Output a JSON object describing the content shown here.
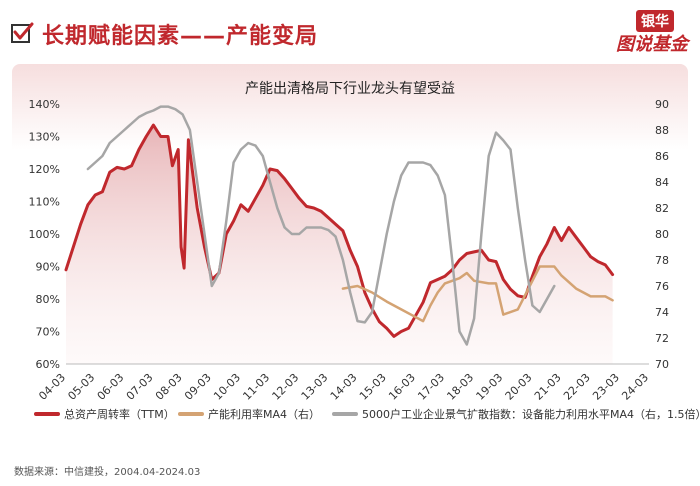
{
  "header": {
    "title": "长期赋能因素——产能变局",
    "brand_top": "银华",
    "brand_main": "图说基金"
  },
  "source": "数据来源：中信建投，2004.04-2024.03",
  "colors": {
    "accent": "#c0282d",
    "series_turnover": "#c0282d",
    "series_capacity": "#d4a373",
    "series_survey": "#a6a6a6"
  },
  "chart_data": {
    "type": "line",
    "title": "产能出清格局下行业龙头有望受益",
    "x_labels": [
      "04-03",
      "05-03",
      "06-03",
      "07-03",
      "08-03",
      "09-03",
      "10-03",
      "11-03",
      "12-03",
      "13-03",
      "14-03",
      "15-03",
      "16-03",
      "17-03",
      "18-03",
      "19-03",
      "20-03",
      "21-03",
      "22-03",
      "23-03",
      "24-03"
    ],
    "x_range": [
      0,
      20
    ],
    "y_left": {
      "min": 60,
      "max": 140,
      "step": 10,
      "ticks": [
        "60%",
        "70%",
        "80%",
        "90%",
        "100%",
        "110%",
        "120%",
        "130%",
        "140%"
      ]
    },
    "y_right": {
      "min": 70,
      "max": 90,
      "step": 2,
      "ticks": [
        "70",
        "72",
        "74",
        "76",
        "78",
        "80",
        "82",
        "84",
        "86",
        "88",
        "90"
      ]
    },
    "grid": false,
    "legend_position": "bottom",
    "series": [
      {
        "name": "总资产周转率（TTM）",
        "axis": "left",
        "style": "line-area",
        "points": [
          [
            0.0,
            89
          ],
          [
            0.5,
            103
          ],
          [
            0.75,
            109
          ],
          [
            1.0,
            112
          ],
          [
            1.25,
            113
          ],
          [
            1.5,
            119
          ],
          [
            1.75,
            120.5
          ],
          [
            2.0,
            120
          ],
          [
            2.25,
            121
          ],
          [
            2.5,
            126
          ],
          [
            2.75,
            130
          ],
          [
            3.0,
            133.5
          ],
          [
            3.25,
            130
          ],
          [
            3.5,
            130
          ],
          [
            3.65,
            121
          ],
          [
            3.85,
            126
          ],
          [
            3.95,
            96
          ],
          [
            4.05,
            89.5
          ],
          [
            4.2,
            129
          ],
          [
            4.5,
            108
          ],
          [
            4.75,
            96
          ],
          [
            5.0,
            86
          ],
          [
            5.25,
            88
          ],
          [
            5.5,
            100
          ],
          [
            5.75,
            104
          ],
          [
            6.0,
            109
          ],
          [
            6.25,
            107
          ],
          [
            6.5,
            111
          ],
          [
            6.75,
            115
          ],
          [
            7.0,
            120
          ],
          [
            7.25,
            119.5
          ],
          [
            7.5,
            117
          ],
          [
            7.75,
            114
          ],
          [
            8.0,
            111
          ],
          [
            8.25,
            108.5
          ],
          [
            8.5,
            108
          ],
          [
            8.75,
            107
          ],
          [
            9.0,
            105
          ],
          [
            9.25,
            103
          ],
          [
            9.5,
            101
          ],
          [
            9.75,
            95
          ],
          [
            10.0,
            90
          ],
          [
            10.25,
            82
          ],
          [
            10.5,
            77
          ],
          [
            10.75,
            73
          ],
          [
            11.0,
            71
          ],
          [
            11.25,
            68.5
          ],
          [
            11.5,
            70
          ],
          [
            11.75,
            71
          ],
          [
            12.0,
            75
          ],
          [
            12.25,
            79
          ],
          [
            12.5,
            85
          ],
          [
            12.75,
            86
          ],
          [
            13.0,
            87
          ],
          [
            13.25,
            89
          ],
          [
            13.5,
            92
          ],
          [
            13.75,
            94
          ],
          [
            14.0,
            94.5
          ],
          [
            14.25,
            95
          ],
          [
            14.5,
            92
          ],
          [
            14.75,
            91.5
          ],
          [
            15.0,
            86
          ],
          [
            15.25,
            83
          ],
          [
            15.5,
            81
          ],
          [
            15.75,
            80.5
          ],
          [
            16.0,
            87
          ],
          [
            16.25,
            93
          ],
          [
            16.5,
            97
          ],
          [
            16.75,
            102
          ],
          [
            17.0,
            98
          ],
          [
            17.25,
            102
          ],
          [
            17.5,
            99
          ],
          [
            17.75,
            96
          ],
          [
            18.0,
            93
          ],
          [
            18.25,
            91.5
          ],
          [
            18.5,
            90.5
          ],
          [
            18.75,
            87.5
          ]
        ]
      },
      {
        "name": "产能利用率MA4（右）",
        "axis": "right",
        "style": "line",
        "points": [
          [
            9.5,
            75.8
          ],
          [
            10.0,
            76.0
          ],
          [
            10.5,
            75.5
          ],
          [
            11.0,
            74.8
          ],
          [
            11.5,
            74.2
          ],
          [
            12.0,
            73.6
          ],
          [
            12.25,
            73.3
          ],
          [
            12.5,
            74.5
          ],
          [
            12.75,
            75.5
          ],
          [
            13.0,
            76.2
          ],
          [
            13.5,
            76.6
          ],
          [
            13.75,
            77.0
          ],
          [
            14.0,
            76.4
          ],
          [
            14.5,
            76.2
          ],
          [
            14.75,
            76.2
          ],
          [
            15.0,
            73.8
          ],
          [
            15.5,
            74.2
          ],
          [
            16.0,
            76.4
          ],
          [
            16.25,
            77.5
          ],
          [
            16.75,
            77.5
          ],
          [
            17.0,
            76.8
          ],
          [
            17.5,
            75.8
          ],
          [
            18.0,
            75.2
          ],
          [
            18.5,
            75.2
          ],
          [
            18.75,
            74.9
          ]
        ]
      },
      {
        "name": "5000户工业企业景气扩散指数：设备能力利用水平MA4（右，1.5倍）",
        "axis": "right",
        "style": "line",
        "points": [
          [
            0.75,
            85
          ],
          [
            1.0,
            85.5
          ],
          [
            1.25,
            86
          ],
          [
            1.5,
            87
          ],
          [
            1.75,
            87.5
          ],
          [
            2.0,
            88
          ],
          [
            2.25,
            88.5
          ],
          [
            2.5,
            89
          ],
          [
            2.75,
            89.3
          ],
          [
            3.0,
            89.5
          ],
          [
            3.25,
            89.8
          ],
          [
            3.5,
            89.8
          ],
          [
            3.75,
            89.6
          ],
          [
            4.0,
            89.2
          ],
          [
            4.25,
            88
          ],
          [
            4.5,
            84
          ],
          [
            4.75,
            80
          ],
          [
            5.0,
            76
          ],
          [
            5.25,
            77
          ],
          [
            5.5,
            81
          ],
          [
            5.75,
            85.5
          ],
          [
            6.0,
            86.5
          ],
          [
            6.25,
            87
          ],
          [
            6.5,
            86.8
          ],
          [
            6.75,
            86
          ],
          [
            7.0,
            84
          ],
          [
            7.25,
            82
          ],
          [
            7.5,
            80.5
          ],
          [
            7.75,
            80
          ],
          [
            8.0,
            80
          ],
          [
            8.25,
            80.5
          ],
          [
            8.5,
            80.5
          ],
          [
            8.75,
            80.5
          ],
          [
            9.0,
            80.3
          ],
          [
            9.25,
            79.8
          ],
          [
            9.5,
            78
          ],
          [
            9.75,
            75.5
          ],
          [
            10.0,
            73.3
          ],
          [
            10.25,
            73.2
          ],
          [
            10.5,
            74
          ],
          [
            10.75,
            77
          ],
          [
            11.0,
            80
          ],
          [
            11.25,
            82.5
          ],
          [
            11.5,
            84.5
          ],
          [
            11.75,
            85.5
          ],
          [
            12.0,
            85.5
          ],
          [
            12.25,
            85.5
          ],
          [
            12.5,
            85.3
          ],
          [
            12.75,
            84.5
          ],
          [
            13.0,
            83
          ],
          [
            13.25,
            78
          ],
          [
            13.5,
            72.5
          ],
          [
            13.75,
            71.5
          ],
          [
            14.0,
            73.5
          ],
          [
            14.25,
            80
          ],
          [
            14.5,
            86
          ],
          [
            14.75,
            87.8
          ],
          [
            15.0,
            87.2
          ],
          [
            15.25,
            86.5
          ],
          [
            15.5,
            82
          ],
          [
            15.75,
            78
          ],
          [
            16.0,
            74.5
          ],
          [
            16.25,
            74
          ],
          [
            16.5,
            75
          ],
          [
            16.75,
            76
          ]
        ]
      }
    ]
  }
}
